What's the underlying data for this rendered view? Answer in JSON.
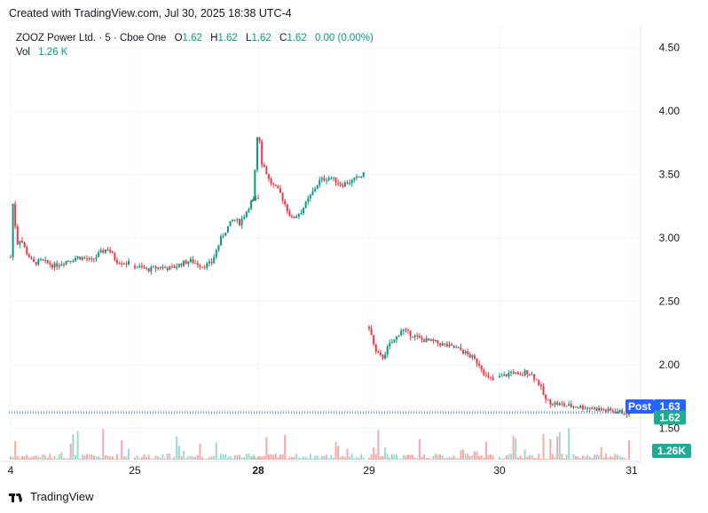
{
  "header": {
    "created": "Created with TradingView.com, Jul 30, 2025 18:38 UTC-4"
  },
  "legend": {
    "symbol": "ZOOZ Power Ltd. · 5 · Cboe One",
    "o_label": "O",
    "o": "1.62",
    "h_label": "H",
    "h": "1.62",
    "l_label": "L",
    "l": "1.62",
    "c_label": "C",
    "c": "1.62",
    "change": "0.00 (0.00%)",
    "vol_label": "Vol",
    "vol": "1.26 K"
  },
  "footer": {
    "brand": "TradingView"
  },
  "colors": {
    "up": "#089981",
    "down": "#f23645",
    "post": "#2962ff",
    "last": "#22ab94",
    "vol_up": "#9fd8cf",
    "vol_down": "#f7a9a8"
  },
  "chart_data": {
    "type": "candlestick",
    "y_ticks": [
      "4.50",
      "4.00",
      "3.50",
      "3.00",
      "2.50",
      "2.00",
      "1.50"
    ],
    "ylim": [
      1.28,
      4.68
    ],
    "x_ticks": [
      {
        "label": "4",
        "day": 0,
        "bold": false
      },
      {
        "label": "25",
        "day": 1,
        "bold": false
      },
      {
        "label": "28",
        "day": 2,
        "bold": true
      },
      {
        "label": "29",
        "day": 3,
        "bold": false
      },
      {
        "label": "30",
        "day": 4,
        "bold": false
      },
      {
        "label": "31",
        "day": 5,
        "bold": false
      }
    ],
    "price_labels": {
      "post_label": "Post",
      "post": "1.63",
      "last": "1.62",
      "volume": "1.26K"
    },
    "price_levels": [
      1.63,
      1.62
    ],
    "sessions": [
      {
        "day": 0,
        "points": [
          [
            0,
            2.85
          ],
          [
            0.02,
            3.3
          ],
          [
            0.05,
            2.95
          ],
          [
            0.08,
            3.0
          ],
          [
            0.12,
            2.9
          ],
          [
            0.18,
            2.8
          ],
          [
            0.25,
            2.82
          ],
          [
            0.35,
            2.78
          ],
          [
            0.45,
            2.82
          ],
          [
            0.55,
            2.85
          ],
          [
            0.65,
            2.82
          ],
          [
            0.72,
            2.88
          ],
          [
            0.78,
            2.92
          ],
          [
            0.85,
            2.82
          ],
          [
            0.95,
            2.8
          ]
        ]
      },
      {
        "day": 1,
        "points": [
          [
            0,
            2.78
          ],
          [
            0.1,
            2.75
          ],
          [
            0.2,
            2.77
          ],
          [
            0.3,
            2.76
          ],
          [
            0.38,
            2.8
          ],
          [
            0.45,
            2.82
          ],
          [
            0.55,
            2.78
          ],
          [
            0.62,
            2.8
          ],
          [
            0.7,
            3.0
          ],
          [
            0.75,
            3.08
          ],
          [
            0.8,
            3.15
          ],
          [
            0.85,
            3.12
          ],
          [
            0.9,
            3.2
          ],
          [
            0.95,
            3.3
          ],
          [
            1.0,
            3.3
          ]
        ]
      },
      {
        "day": 2,
        "points": [
          [
            -0.05,
            3.3
          ],
          [
            0.0,
            3.9
          ],
          [
            0.03,
            3.6
          ],
          [
            0.06,
            3.55
          ],
          [
            0.1,
            3.45
          ],
          [
            0.15,
            3.4
          ],
          [
            0.2,
            3.35
          ],
          [
            0.25,
            3.25
          ],
          [
            0.3,
            3.15
          ],
          [
            0.38,
            3.2
          ],
          [
            0.45,
            3.3
          ],
          [
            0.55,
            3.45
          ],
          [
            0.65,
            3.48
          ],
          [
            0.75,
            3.42
          ],
          [
            0.85,
            3.45
          ],
          [
            0.95,
            3.5
          ]
        ]
      },
      {
        "day": 3,
        "points": [
          [
            0,
            2.3
          ],
          [
            0.05,
            2.1
          ],
          [
            0.1,
            2.05
          ],
          [
            0.15,
            2.15
          ],
          [
            0.2,
            2.2
          ],
          [
            0.25,
            2.28
          ],
          [
            0.3,
            2.25
          ],
          [
            0.4,
            2.2
          ],
          [
            0.5,
            2.18
          ],
          [
            0.6,
            2.15
          ],
          [
            0.7,
            2.12
          ],
          [
            0.8,
            2.05
          ],
          [
            0.85,
            2.0
          ],
          [
            0.9,
            1.9
          ],
          [
            0.95,
            1.88
          ]
        ]
      },
      {
        "day": 4,
        "points": [
          [
            0,
            1.9
          ],
          [
            0.05,
            1.92
          ],
          [
            0.1,
            1.95
          ],
          [
            0.15,
            1.9
          ],
          [
            0.2,
            1.95
          ],
          [
            0.25,
            1.92
          ],
          [
            0.3,
            1.85
          ],
          [
            0.35,
            1.72
          ],
          [
            0.4,
            1.7
          ],
          [
            0.5,
            1.68
          ],
          [
            0.6,
            1.67
          ],
          [
            0.7,
            1.66
          ],
          [
            0.8,
            1.64
          ],
          [
            0.9,
            1.63
          ],
          [
            0.98,
            1.62
          ]
        ]
      }
    ]
  }
}
